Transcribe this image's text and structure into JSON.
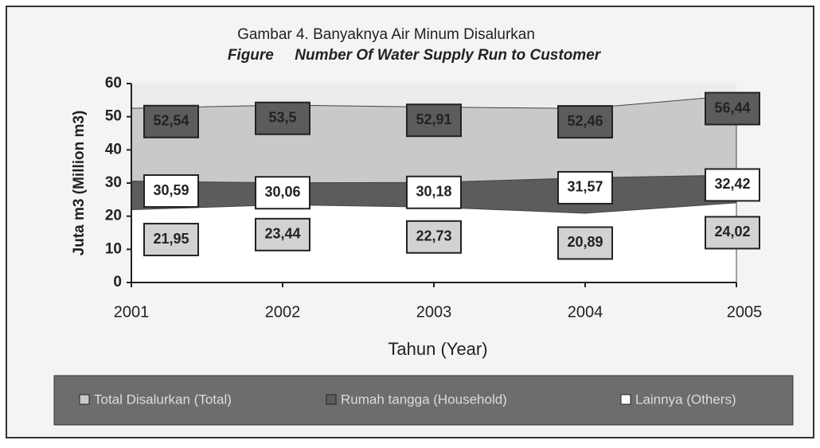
{
  "chart_data": {
    "type": "area",
    "title": "Gambar 4. Banyaknya Air Minum Disalurkan",
    "subtitle": "Figure     Number Of Water Supply Run to Customer",
    "x_label": "Tahun (Year)",
    "y_label": "Juta m3 (Million m3)",
    "categories": [
      "2001",
      "2002",
      "2003",
      "2004",
      "2005"
    ],
    "ylim": [
      0,
      60
    ],
    "yticks": [
      0,
      10,
      20,
      30,
      40,
      50,
      60
    ],
    "grid": false,
    "legend": "bottom",
    "series": [
      {
        "name": "Total Disalurkan (Total)",
        "color": "#c9c9c9",
        "values": [
          52.54,
          53.5,
          52.91,
          52.46,
          56.44
        ],
        "value_labels": [
          "52,54",
          "53,5",
          "52,91",
          "52,46",
          "56,44"
        ]
      },
      {
        "name": "Rumah tangga (Household)",
        "color": "#5c5c5c",
        "values": [
          30.59,
          30.06,
          30.18,
          31.57,
          32.42
        ],
        "value_labels": [
          "30,59",
          "30,06",
          "30,18",
          "31,57",
          "32,42"
        ]
      },
      {
        "name": "Lainnya (Others)",
        "color": "#ffffff",
        "values": [
          21.95,
          23.44,
          22.73,
          20.89,
          24.02
        ],
        "value_labels": [
          "21,95",
          "23,44",
          "22,73",
          "20,89",
          "24,02"
        ]
      }
    ]
  }
}
